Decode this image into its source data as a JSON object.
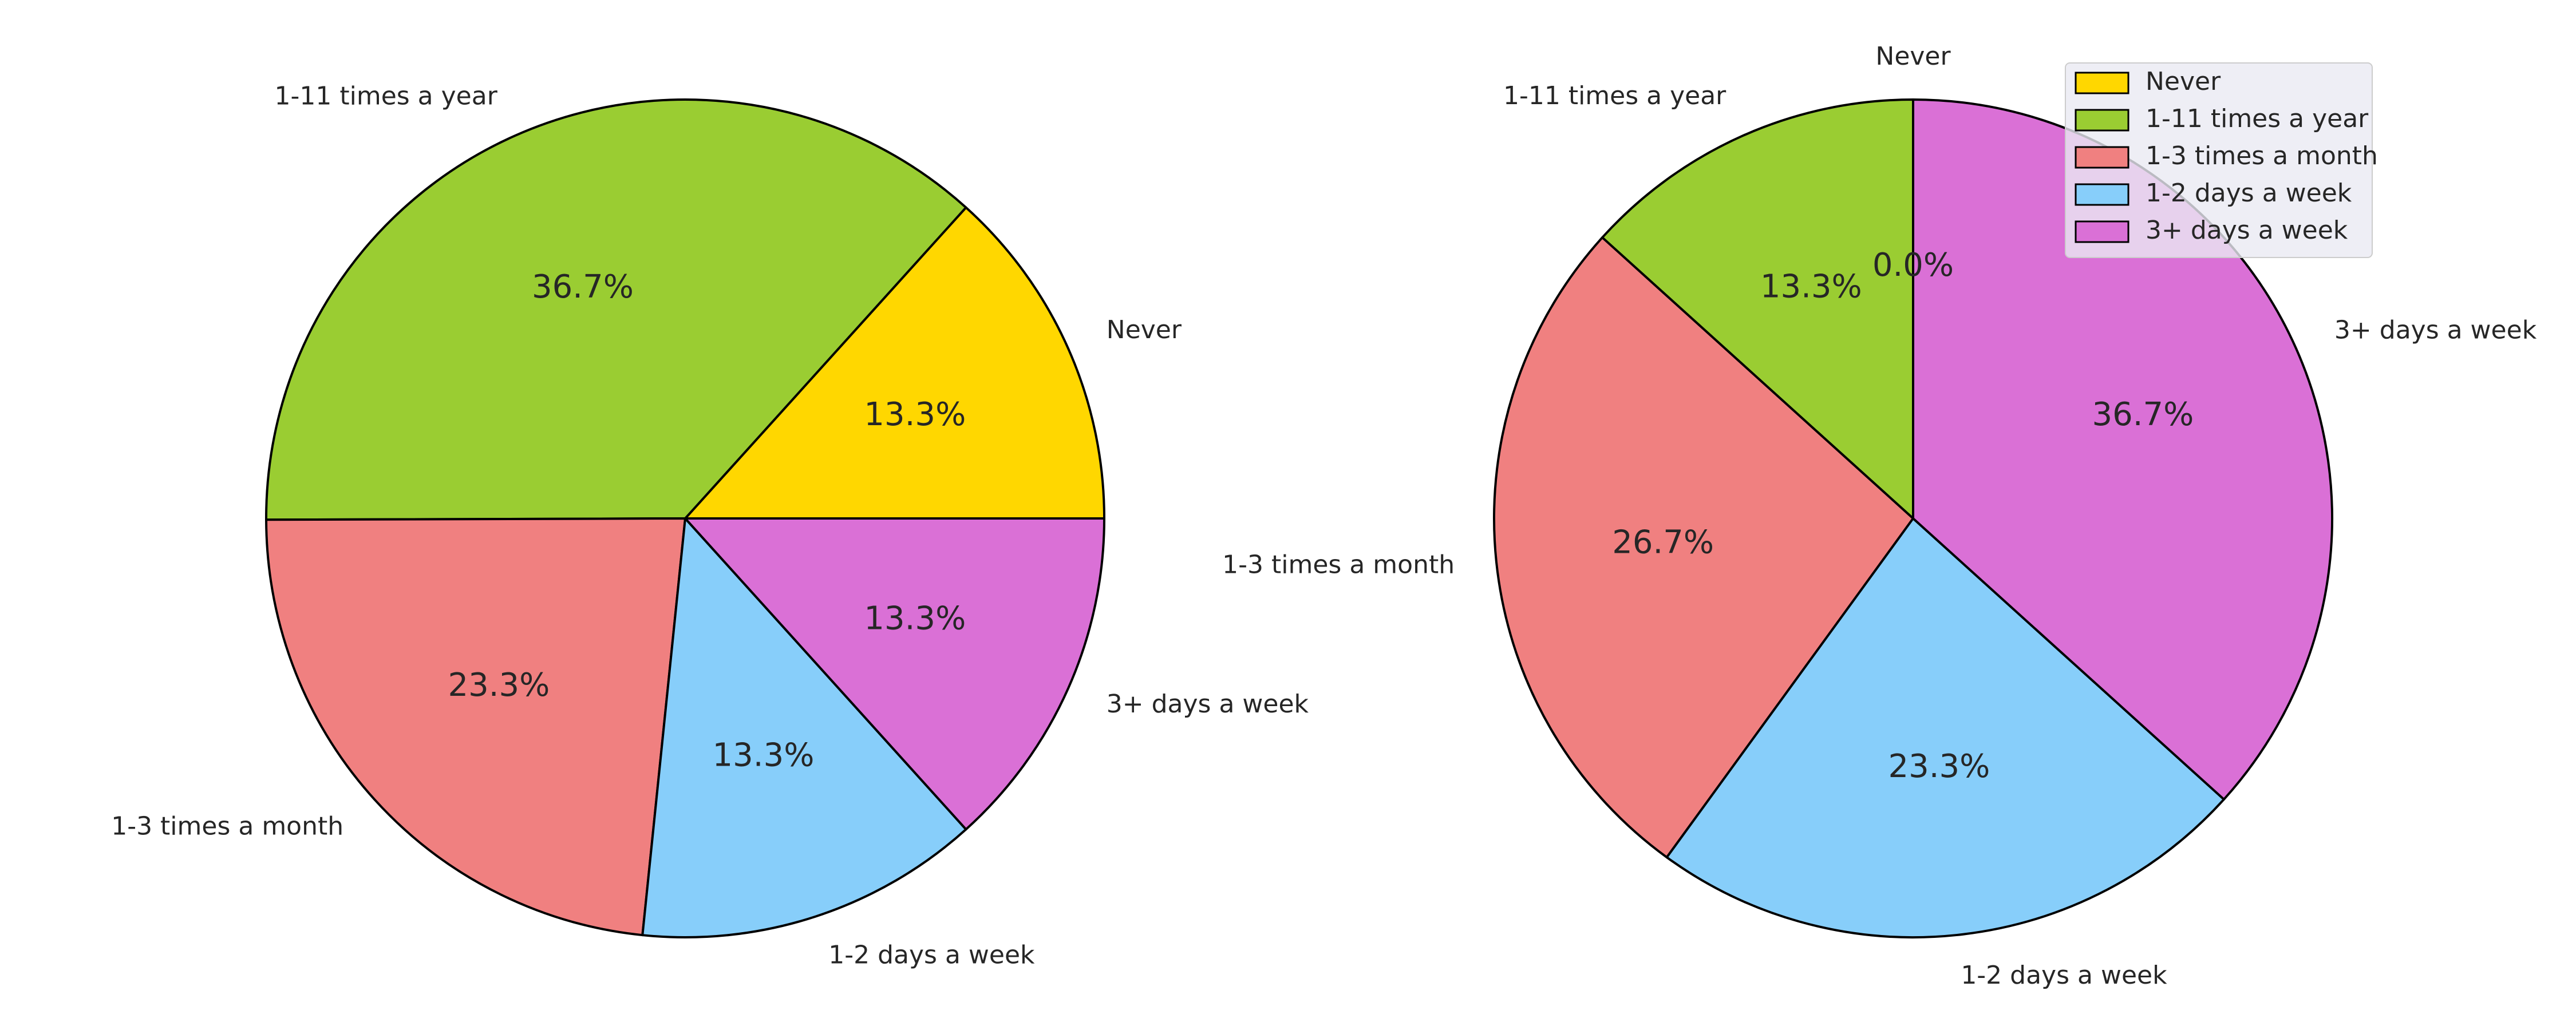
{
  "chart_data": [
    {
      "type": "pie",
      "categories": [
        "Never",
        "1-11 times a year",
        "1-3 times a month",
        "1-2 days a week",
        "3+ days a week"
      ],
      "values": [
        13.3,
        36.7,
        23.3,
        13.3,
        13.3
      ],
      "value_labels": [
        "13.3%",
        "36.7%",
        "23.3%",
        "13.3%",
        "13.3%"
      ],
      "colors": [
        "#FFD700",
        "#9ACD32",
        "#F08080",
        "#87CEFA",
        "#DA70D6"
      ],
      "start_angle_deg": 0,
      "direction": "counterclockwise",
      "legend": false
    },
    {
      "type": "pie",
      "categories": [
        "Never",
        "1-11 times a year",
        "1-3 times a month",
        "1-2 days a week",
        "3+ days a week"
      ],
      "values": [
        0.0,
        13.3,
        26.7,
        23.3,
        36.7
      ],
      "value_labels": [
        "0.0%",
        "13.3%",
        "26.7%",
        "23.3%",
        "36.7%"
      ],
      "colors": [
        "#FFD700",
        "#9ACD32",
        "#F08080",
        "#87CEFA",
        "#DA70D6"
      ],
      "start_angle_deg": 90,
      "direction": "counterclockwise",
      "legend": true,
      "legend_position": "upper-right",
      "legend_entries": [
        "Never",
        "1-11 times a year",
        "1-3 times a month",
        "1-2 days a week",
        "3+ days a week"
      ]
    }
  ]
}
